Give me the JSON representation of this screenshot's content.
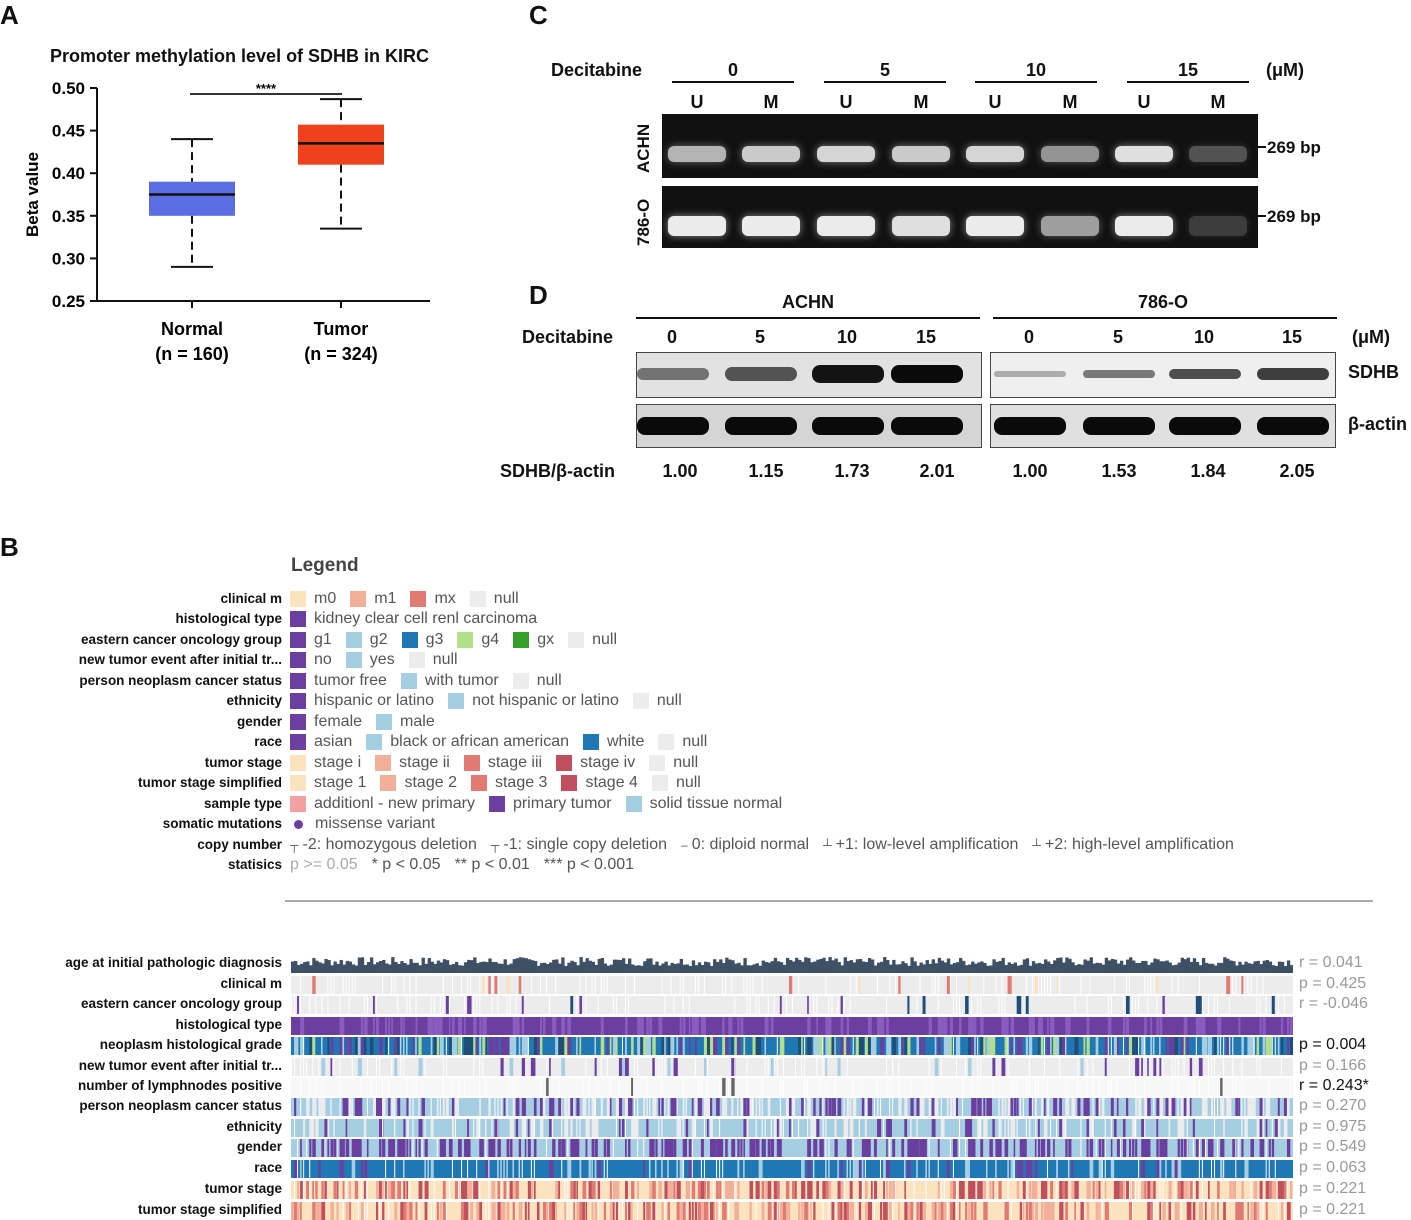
{
  "panels": {
    "a": "A",
    "b": "B",
    "c": "C",
    "d": "D"
  },
  "panelA": {
    "chart_data": {
      "type": "boxplot",
      "title": "Promoter methylation level of SDHB in KIRC",
      "ylabel": "Beta value",
      "ylim": [
        0.25,
        0.5
      ],
      "yticks": [
        "0.25",
        "0.30",
        "0.35",
        "0.40",
        "0.45",
        "0.50"
      ],
      "significance": "****",
      "groups": [
        {
          "name": "Normal",
          "n_label": "(n = 160)",
          "color": "#5B6EE1",
          "min": 0.29,
          "q1": 0.35,
          "median": 0.375,
          "q3": 0.39,
          "max": 0.44
        },
        {
          "name": "Tumor",
          "n_label": "(n = 324)",
          "color": "#F0411E",
          "min": 0.335,
          "q1": 0.41,
          "median": 0.435,
          "q3": 0.457,
          "max": 0.487
        }
      ]
    }
  },
  "panelC": {
    "treatment_label": "Decitabine",
    "unit": "(μM)",
    "doses": [
      "0",
      "5",
      "10",
      "15"
    ],
    "lanes": [
      "U",
      "M",
      "U",
      "M",
      "U",
      "M",
      "U",
      "M"
    ],
    "cell_lines": [
      "ACHN",
      "786-O"
    ],
    "band_size": "269 bp",
    "intensity": [
      [
        0.75,
        0.85,
        0.9,
        0.85,
        0.9,
        0.6,
        0.95,
        0.3
      ],
      [
        1.0,
        1.0,
        1.0,
        0.95,
        1.0,
        0.65,
        1.0,
        0.2
      ]
    ]
  },
  "panelD": {
    "cell_lines": [
      "ACHN",
      "786-O"
    ],
    "treatment_label": "Decitabine",
    "unit": "(μM)",
    "doses": [
      "0",
      "5",
      "10",
      "15",
      "0",
      "5",
      "10",
      "15"
    ],
    "proteins": [
      "SDHB",
      "β-actin"
    ],
    "ratio_label": "SDHB/β-actin",
    "ratios": [
      "1.00",
      "1.15",
      "1.73",
      "2.01",
      "1.00",
      "1.53",
      "1.84",
      "2.05"
    ]
  },
  "panelB": {
    "legend_title": "Legend",
    "legend": [
      {
        "label": "clinical m",
        "items": [
          {
            "t": "m0",
            "c": "#fbe3c0"
          },
          {
            "t": "m1",
            "c": "#f2b09a"
          },
          {
            "t": "mx",
            "c": "#e07a72"
          },
          {
            "t": "null",
            "c": "#ececec"
          }
        ]
      },
      {
        "label": "histological type",
        "items": [
          {
            "t": "kidney clear cell renl carcinoma",
            "c": "#6a3fa0"
          }
        ]
      },
      {
        "label": "eastern cancer oncology group",
        "items": [
          {
            "t": "g1",
            "c": "#6a3fa0"
          },
          {
            "t": "g2",
            "c": "#a6cee3"
          },
          {
            "t": "g3",
            "c": "#1f78b4"
          },
          {
            "t": "g4",
            "c": "#b2df8a"
          },
          {
            "t": "gx",
            "c": "#33a02c"
          },
          {
            "t": "null",
            "c": "#ececec"
          }
        ]
      },
      {
        "label": "new tumor event after initial tr...",
        "items": [
          {
            "t": "no",
            "c": "#6a3fa0"
          },
          {
            "t": "yes",
            "c": "#a6cee3"
          },
          {
            "t": "null",
            "c": "#ececec"
          }
        ]
      },
      {
        "label": "person neoplasm cancer status",
        "items": [
          {
            "t": "tumor free",
            "c": "#6a3fa0"
          },
          {
            "t": "with tumor",
            "c": "#a6cee3"
          },
          {
            "t": "null",
            "c": "#ececec"
          }
        ]
      },
      {
        "label": "ethnicity",
        "items": [
          {
            "t": "hispanic or latino",
            "c": "#6a3fa0"
          },
          {
            "t": "not hispanic or latino",
            "c": "#a6cee3"
          },
          {
            "t": "null",
            "c": "#ececec"
          }
        ]
      },
      {
        "label": "gender",
        "items": [
          {
            "t": "female",
            "c": "#6a3fa0"
          },
          {
            "t": "male",
            "c": "#a6cee3"
          }
        ]
      },
      {
        "label": "race",
        "items": [
          {
            "t": "asian",
            "c": "#6a3fa0"
          },
          {
            "t": "black or african american",
            "c": "#a6cee3"
          },
          {
            "t": "white",
            "c": "#1f78b4"
          },
          {
            "t": "null",
            "c": "#ececec"
          }
        ]
      },
      {
        "label": "tumor stage",
        "items": [
          {
            "t": "stage i",
            "c": "#fbe3c0"
          },
          {
            "t": "stage ii",
            "c": "#f2b09a"
          },
          {
            "t": "stage iii",
            "c": "#e07a72"
          },
          {
            "t": "stage iv",
            "c": "#c0505e"
          },
          {
            "t": "null",
            "c": "#ececec"
          }
        ]
      },
      {
        "label": "tumor stage simplified",
        "items": [
          {
            "t": "stage 1",
            "c": "#fbe3c0"
          },
          {
            "t": "stage 2",
            "c": "#f2b09a"
          },
          {
            "t": "stage 3",
            "c": "#e07a72"
          },
          {
            "t": "stage 4",
            "c": "#c0505e"
          },
          {
            "t": "null",
            "c": "#ececec"
          }
        ]
      },
      {
        "label": "sample type",
        "items": [
          {
            "t": "additionl - new primary",
            "c": "#f4a0a0"
          },
          {
            "t": "primary tumor",
            "c": "#6a3fa0"
          },
          {
            "t": "solid tissue normal",
            "c": "#a6cee3"
          }
        ]
      },
      {
        "label": "somatic mutations",
        "items": [
          {
            "t": "missense variant",
            "c": "#6a3fa0",
            "dot": true
          }
        ]
      },
      {
        "label": "copy number",
        "items": [
          {
            "t": "-2: homozygous deletion",
            "c": "",
            "mark": "┬"
          },
          {
            "t": "-1: single copy deletion",
            "c": "",
            "mark": "┬"
          },
          {
            "t": "0: diploid normal",
            "c": "",
            "mark": "–"
          },
          {
            "t": "+1: low-level amplification",
            "c": "",
            "mark": "┴"
          },
          {
            "t": "+2: high-level amplification",
            "c": "",
            "mark": "┴"
          }
        ]
      },
      {
        "label": "statisics",
        "items": [
          {
            "t": "p >= 0.05",
            "c": "",
            "muted": true
          },
          {
            "t": "* p < 0.05",
            "c": ""
          },
          {
            "t": "** p < 0.01",
            "c": ""
          },
          {
            "t": "*** p < 0.001",
            "c": ""
          }
        ]
      }
    ],
    "tracks": [
      {
        "label": "age at initial pathologic diagnosis",
        "stat": "r = 0.041",
        "sig": false,
        "kind": "bars"
      },
      {
        "label": "clinical m",
        "stat": "p = 0.425",
        "sig": false,
        "kind": "sparse",
        "base": "#ececec",
        "colors": [
          "#e07a72",
          "#fbe3c0"
        ],
        "density": 0.03
      },
      {
        "label": "eastern cancer oncology group",
        "stat": "r = -0.046",
        "sig": false,
        "kind": "sparse",
        "base": "#ececec",
        "colors": [
          "#1f4e79",
          "#6a3fa0"
        ],
        "density": 0.06
      },
      {
        "label": "histological type",
        "stat": "",
        "sig": false,
        "kind": "solid",
        "base": "#6a3fa0",
        "colors": [
          "#8a5cc0"
        ],
        "density": 0.3
      },
      {
        "label": "neoplasm histological grade",
        "stat": "p = 0.004",
        "sig": true,
        "kind": "mixed",
        "base": "#1f78b4",
        "colors": [
          "#a6cee3",
          "#b2df8a",
          "#6a3fa0",
          "#1f4e79"
        ],
        "density": 0.6
      },
      {
        "label": "new tumor event after initial tr...",
        "stat": "p = 0.166",
        "sig": false,
        "kind": "sparse",
        "base": "#ececec",
        "colors": [
          "#6a3fa0",
          "#a6cee3"
        ],
        "density": 0.12
      },
      {
        "label": "number of lymphnodes positive",
        "stat": "r = 0.243*",
        "sig": true,
        "kind": "sparse",
        "base": "#f7f7f7",
        "colors": [
          "#666"
        ],
        "density": 0.02
      },
      {
        "label": "person neoplasm cancer status",
        "stat": "p = 0.270",
        "sig": false,
        "kind": "mixed",
        "base": "#a6cee3",
        "colors": [
          "#6a3fa0",
          "#ececec"
        ],
        "density": 0.5
      },
      {
        "label": "ethnicity",
        "stat": "p = 0.975",
        "sig": false,
        "kind": "mixed",
        "base": "#a6cee3",
        "colors": [
          "#ececec",
          "#6a3fa0"
        ],
        "density": 0.3
      },
      {
        "label": "gender",
        "stat": "p = 0.549",
        "sig": false,
        "kind": "mixed",
        "base": "#a6cee3",
        "colors": [
          "#6a3fa0"
        ],
        "density": 0.45
      },
      {
        "label": "race",
        "stat": "p = 0.063",
        "sig": false,
        "kind": "mixed",
        "base": "#1f78b4",
        "colors": [
          "#a6cee3",
          "#6a3fa0"
        ],
        "density": 0.15
      },
      {
        "label": "tumor stage",
        "stat": "p = 0.221",
        "sig": false,
        "kind": "mixed",
        "base": "#fbe3c0",
        "colors": [
          "#e07a72",
          "#f2b09a",
          "#c0505e"
        ],
        "density": 0.5
      },
      {
        "label": "tumor stage simplified",
        "stat": "p = 0.221",
        "sig": false,
        "kind": "mixed",
        "base": "#fbe3c0",
        "colors": [
          "#e07a72",
          "#f2b09a",
          "#c0505e"
        ],
        "density": 0.5
      }
    ]
  }
}
